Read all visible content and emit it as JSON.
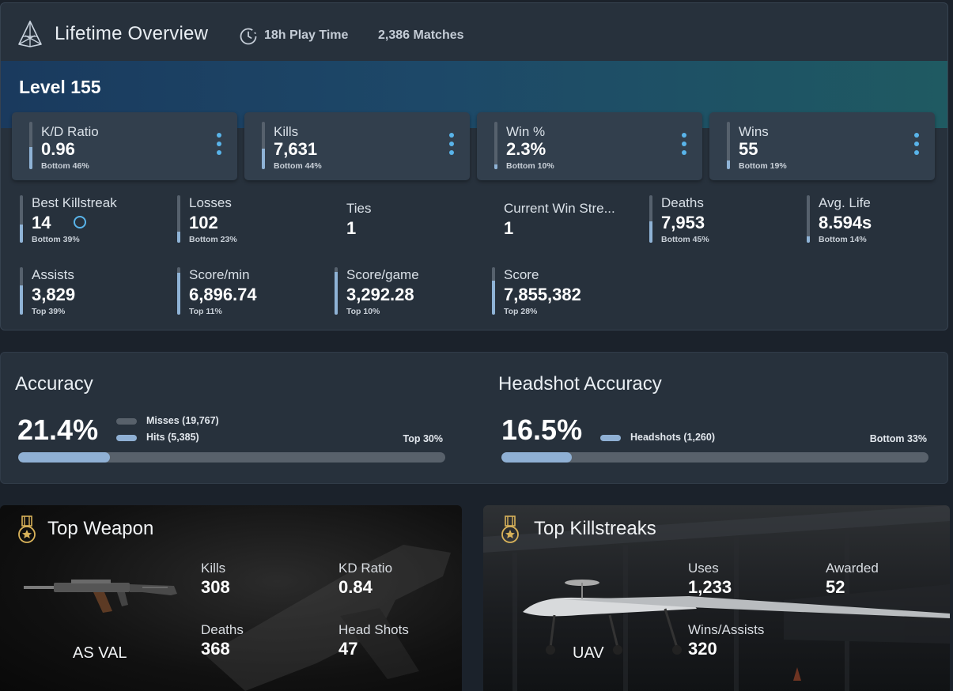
{
  "header": {
    "title": "Lifetime Overview",
    "play_time": "18h Play Time",
    "matches": "2,386 Matches"
  },
  "level": "Level 155",
  "cards": [
    {
      "label": "K/D Ratio",
      "value": "0.96",
      "rank": "Bottom 46%",
      "fill": 0.46
    },
    {
      "label": "Kills",
      "value": "7,631",
      "rank": "Bottom 44%",
      "fill": 0.44
    },
    {
      "label": "Win %",
      "value": "2.3%",
      "rank": "Bottom 10%",
      "fill": 0.1
    },
    {
      "label": "Wins",
      "value": "55",
      "rank": "Bottom 19%",
      "fill": 0.19
    }
  ],
  "stats_row1": [
    {
      "label": "Best Killstreak",
      "value": "14",
      "rank": "Bottom 39%",
      "fill": 0.39
    },
    {
      "label": "Losses",
      "value": "102",
      "rank": "Bottom 23%",
      "fill": 0.23
    },
    {
      "label": "Ties",
      "value": "1",
      "rank": "",
      "fill": null
    },
    {
      "label": "Current Win Stre...",
      "value": "1",
      "rank": "",
      "fill": null
    },
    {
      "label": "Deaths",
      "value": "7,953",
      "rank": "Bottom 45%",
      "fill": 0.45
    },
    {
      "label": "Avg. Life",
      "value": "8.594s",
      "rank": "Bottom 14%",
      "fill": 0.14
    }
  ],
  "stats_row2": [
    {
      "label": "Assists",
      "value": "3,829",
      "rank": "Top 39%",
      "fill": 0.61
    },
    {
      "label": "Score/min",
      "value": "6,896.74",
      "rank": "Top 11%",
      "fill": 0.89
    },
    {
      "label": "Score/game",
      "value": "3,292.28",
      "rank": "Top 10%",
      "fill": 0.9
    },
    {
      "label": "Score",
      "value": "7,855,382",
      "rank": "Top 28%",
      "fill": 0.72
    }
  ],
  "accuracy": {
    "title": "Accuracy",
    "value": "21.4%",
    "legend_misses": "Misses (19,767)",
    "legend_hits": "Hits (5,385)",
    "rank": "Top 30%",
    "fill": 0.214,
    "color_hits": "#8fb0d4",
    "color_misses": "#58616b"
  },
  "headshot": {
    "title": "Headshot Accuracy",
    "value": "16.5%",
    "legend_headshots": "Headshots (1,260)",
    "rank": "Bottom 33%",
    "fill": 0.165
  },
  "top_weapon": {
    "title": "Top Weapon",
    "name": "AS VAL",
    "stats": [
      {
        "label": "Kills",
        "value": "308"
      },
      {
        "label": "KD Ratio",
        "value": "0.84"
      },
      {
        "label": "Deaths",
        "value": "368"
      },
      {
        "label": "Head Shots",
        "value": "47"
      }
    ]
  },
  "top_killstreaks": {
    "title": "Top Killstreaks",
    "name": "UAV",
    "stats": [
      {
        "label": "Uses",
        "value": "1,233"
      },
      {
        "label": "Awarded",
        "value": "52"
      },
      {
        "label": "Wins/Assists",
        "value": "320"
      }
    ]
  },
  "colors": {
    "accent": "#59b4ea",
    "bar_fill": "#8fb3d6",
    "bar_track": "#56616d",
    "panel_bg": "#27313c"
  }
}
